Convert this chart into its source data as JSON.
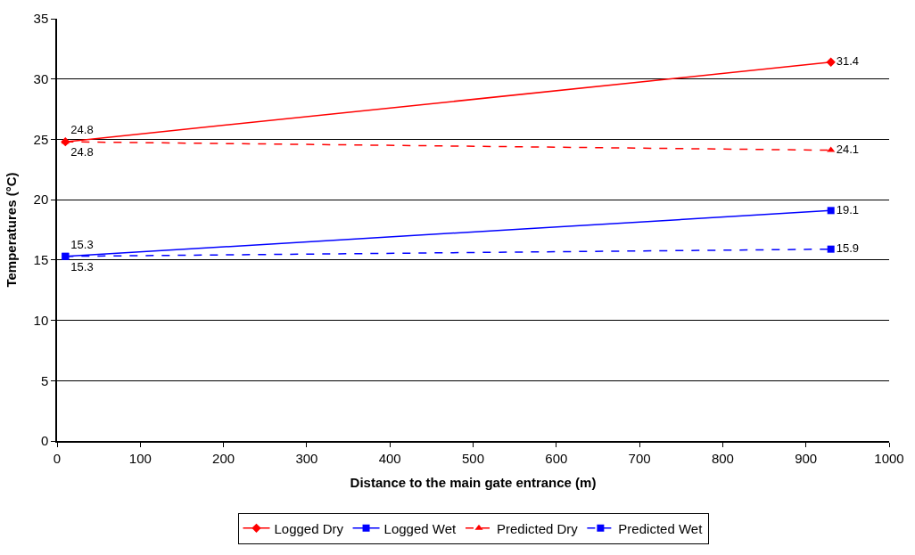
{
  "chart_data": {
    "type": "line",
    "xlabel": "Distance to the main gate entrance (m)",
    "ylabel": "Temperatures (°C)",
    "xlim": [
      0,
      1000
    ],
    "xticks": [
      0,
      100,
      200,
      300,
      400,
      500,
      600,
      700,
      800,
      900,
      1000
    ],
    "ylim": [
      0,
      35
    ],
    "yticks": [
      0,
      5,
      10,
      15,
      20,
      25,
      30,
      35
    ],
    "grid": "y",
    "legend": "bottom",
    "data_labels": true,
    "x": [
      10,
      930
    ],
    "series": [
      {
        "name": "Logged Dry",
        "color": "#ff0000",
        "values": [
          24.8,
          31.4
        ],
        "marker": "diamond",
        "line_style": "solid"
      },
      {
        "name": "Logged Wet",
        "color": "#0000ff",
        "values": [
          15.3,
          19.1
        ],
        "marker": "square",
        "line_style": "solid"
      },
      {
        "name": "Predicted Dry",
        "color": "#ff0000",
        "values": [
          24.8,
          24.1
        ],
        "marker": "triangle",
        "line_style": "dashed"
      },
      {
        "name": "Predicted Wet",
        "color": "#0000ff",
        "values": [
          15.3,
          15.9
        ],
        "marker": "square",
        "line_style": "dashed"
      }
    ]
  }
}
